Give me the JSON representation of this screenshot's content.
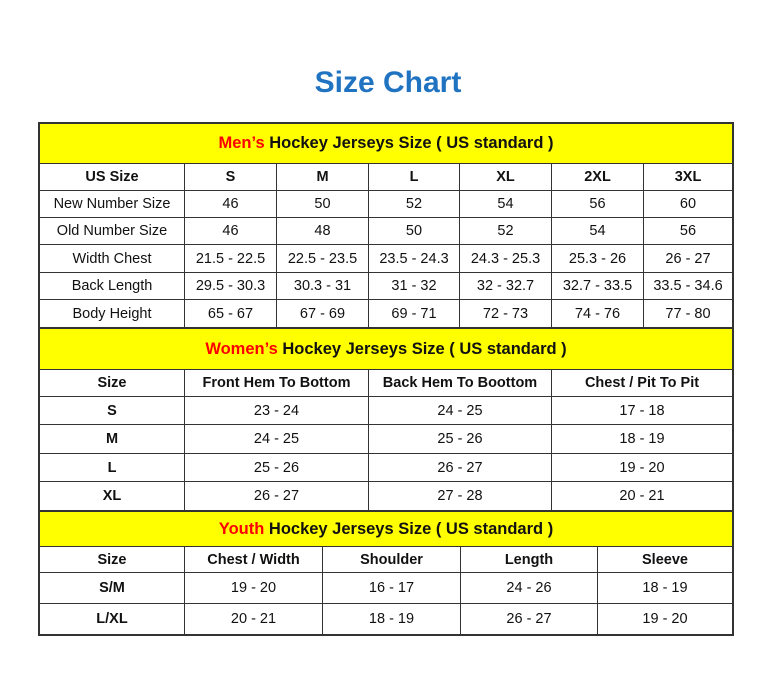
{
  "title": "Size Chart",
  "colors": {
    "title": "#1f73c1",
    "banner": "#ffff00",
    "highlight": "#ff0000"
  },
  "men": {
    "banner_highlight": "Men’s",
    "banner_rest": " Hockey Jerseys Size ( US standard )",
    "headers": [
      "US Size",
      "S",
      "M",
      "L",
      "XL",
      "2XL",
      "3XL"
    ],
    "rows": [
      [
        "New Number Size",
        "46",
        "50",
        "52",
        "54",
        "56",
        "60"
      ],
      [
        "Old Number Size",
        "46",
        "48",
        "50",
        "52",
        "54",
        "56"
      ],
      [
        "Width Chest",
        "21.5 - 22.5",
        "22.5 - 23.5",
        "23.5 - 24.3",
        "24.3 - 25.3",
        "25.3 - 26",
        "26 - 27"
      ],
      [
        "Back Length",
        "29.5 - 30.3",
        "30.3 - 31",
        "31 - 32",
        "32 - 32.7",
        "32.7 - 33.5",
        "33.5 - 34.6"
      ],
      [
        "Body Height",
        "65 - 67",
        "67 - 69",
        "69 - 71",
        "72 - 73",
        "74 - 76",
        "77 - 80"
      ]
    ]
  },
  "women": {
    "banner_highlight": "Women’s",
    "banner_rest": " Hockey Jerseys Size ( US standard )",
    "headers": [
      "Size",
      "Front Hem To Bottom",
      "Back Hem To Boottom",
      "Chest / Pit To Pit"
    ],
    "rows": [
      [
        "S",
        "23 - 24",
        "24 - 25",
        "17 - 18"
      ],
      [
        "M",
        "24 - 25",
        "25 - 26",
        "18 - 19"
      ],
      [
        "L",
        "25 - 26",
        "26 - 27",
        "19 - 20"
      ],
      [
        "XL",
        "26 - 27",
        "27 - 28",
        "20 - 21"
      ]
    ]
  },
  "youth": {
    "banner_highlight": "Youth",
    "banner_rest": " Hockey Jerseys Size ( US standard )",
    "headers": [
      "Size",
      "Chest / Width",
      "Shoulder",
      "Length",
      "Sleeve"
    ],
    "rows": [
      [
        "S/M",
        "19 - 20",
        "16 - 17",
        "24 - 26",
        "18 - 19"
      ],
      [
        "L/XL",
        "20 - 21",
        "18 - 19",
        "26 - 27",
        "19 - 20"
      ]
    ]
  }
}
